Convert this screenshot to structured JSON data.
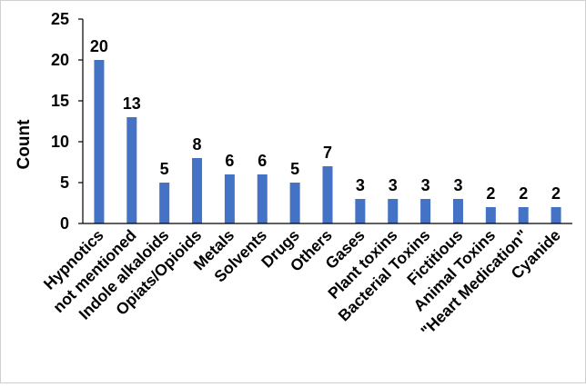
{
  "chart_data": {
    "type": "bar",
    "title": "",
    "xlabel": "",
    "ylabel": "Count",
    "ylim": [
      0,
      25
    ],
    "yticks": [
      0,
      5,
      10,
      15,
      20,
      25
    ],
    "grid": false,
    "legend": "none",
    "bar_color": "#4472C4",
    "categories": [
      "Hypnotics",
      "not mentioned",
      "Indole alkaloids",
      "Opiats/Opioids",
      "Metals",
      "Solvents",
      "Drugs",
      "Others",
      "Gases",
      "Plant toxins",
      "Bacterial Toxins",
      "Fictitious",
      "Animal Toxins",
      "\"Heart Medication\"",
      "Cyanide"
    ],
    "values": [
      20,
      13,
      5,
      8,
      6,
      6,
      5,
      7,
      3,
      3,
      3,
      3,
      2,
      2,
      2
    ]
  }
}
